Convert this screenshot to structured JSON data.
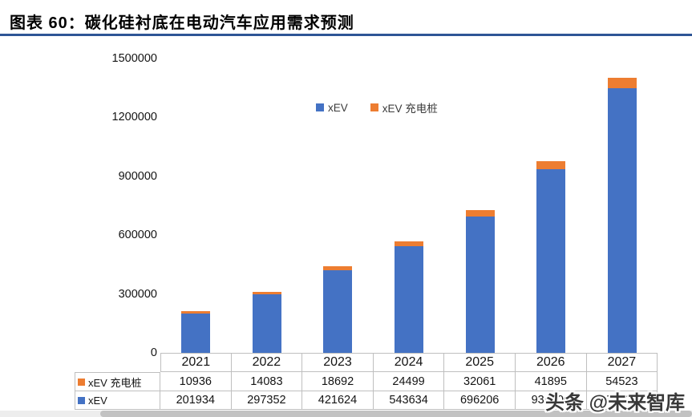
{
  "header": {
    "title": "图表 60：碳化硅衬底在电动汽车应用需求预测"
  },
  "colors": {
    "xev_blue": "#4472C4",
    "charger_orange": "#ED7D31",
    "title_rule": "#2E5596",
    "table_border": "#BFBFBF"
  },
  "legend": {
    "items": [
      {
        "label": "xEV",
        "color": "#4472C4"
      },
      {
        "label": "xEV 充电桩",
        "color": "#ED7D31"
      }
    ]
  },
  "chart_data": {
    "type": "bar",
    "stacked": true,
    "title": "图表 60：碳化硅衬底在电动汽车应用需求预测",
    "categories": [
      "2021",
      "2022",
      "2023",
      "2024",
      "2025",
      "2026",
      "2027"
    ],
    "series": [
      {
        "name": "xEV",
        "color": "#4472C4",
        "values": [
          201934,
          297352,
          421624,
          543634,
          696206,
          934000,
          1348000
        ]
      },
      {
        "name": "xEV 充电桩",
        "color": "#ED7D31",
        "values": [
          10936,
          14083,
          18692,
          24499,
          32061,
          41895,
          54523
        ]
      }
    ],
    "ylim": [
      0,
      1500000
    ],
    "ytick_labels": [
      "1500000",
      "1200000",
      "900000",
      "600000",
      "300000",
      "0"
    ],
    "grid": false,
    "legend_position": "top-center"
  },
  "table": {
    "year_header": [
      "2021",
      "2022",
      "2023",
      "2024",
      "2025",
      "2026",
      "2027"
    ],
    "rows": [
      {
        "label": "xEV 充电桩",
        "color": "#ED7D31",
        "values": [
          "10936",
          "14083",
          "18692",
          "24499",
          "32061",
          "41895",
          "54523"
        ]
      },
      {
        "label": "xEV",
        "color": "#4472C4",
        "values": [
          "201934",
          "297352",
          "421624",
          "543634",
          "696206",
          "934000",
          "1348000"
        ]
      }
    ]
  },
  "watermark": {
    "text": "头条 @未来智库"
  }
}
